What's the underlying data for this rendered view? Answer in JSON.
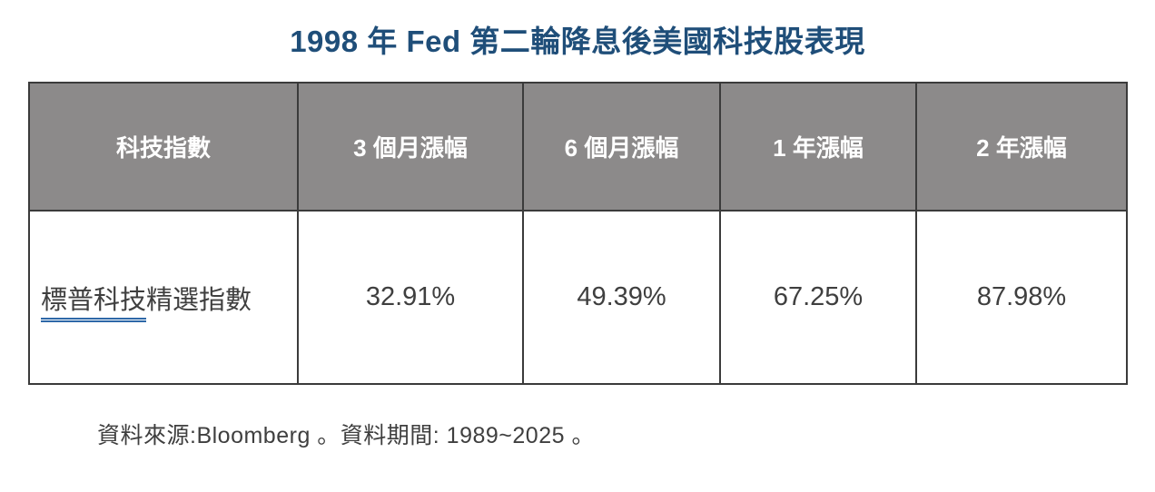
{
  "page": {
    "title": "1998 年 Fed 第二輪降息後美國科技股表現"
  },
  "table": {
    "headers": [
      "科技指數",
      "3 個月漲幅",
      "6 個月漲幅",
      "1 年漲幅",
      "2 年漲幅"
    ],
    "rows": [
      {
        "name_underlined": "標普科技",
        "name_rest": "精選指數",
        "values": [
          "32.91%",
          "49.39%",
          "67.25%",
          "87.98%"
        ]
      }
    ]
  },
  "footer": {
    "text": "資料來源:Bloomberg 。資料期間: 1989~2025 。"
  },
  "colors": {
    "title_color": "#1F4E79",
    "header_bg": "#8C8A8A",
    "header_text": "#FFFFFF",
    "border_color": "#3B3B3B",
    "body_text": "#3F3F3F",
    "grammar_underline": "#2E68A8"
  }
}
